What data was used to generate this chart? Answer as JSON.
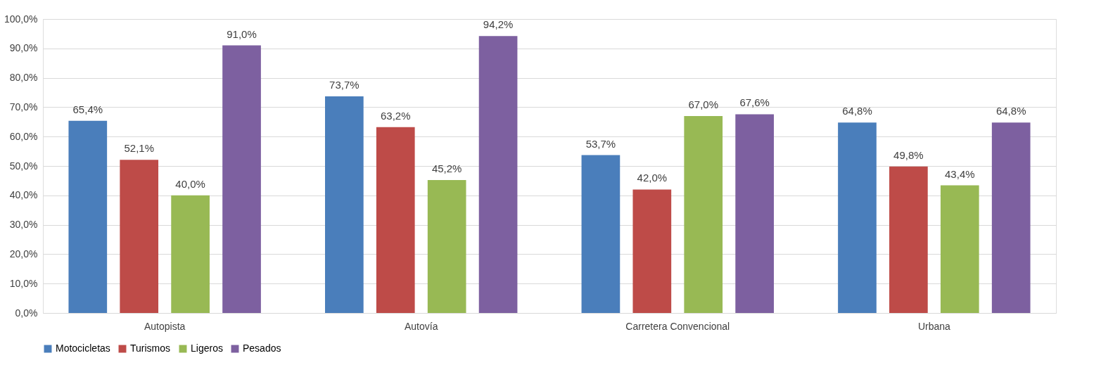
{
  "chart_data": {
    "type": "bar",
    "categories": [
      "Autopista",
      "Autovía",
      "Carretera Convencional",
      "Urbana"
    ],
    "series": [
      {
        "name": "Motocicletas",
        "color": "#4a7ebb",
        "values": [
          65.4,
          73.7,
          53.7,
          64.8
        ],
        "value_labels": [
          "65,4%",
          "73,7%",
          "53,7%",
          "64,8%"
        ]
      },
      {
        "name": "Turismos",
        "color": "#be4b48",
        "values": [
          52.1,
          63.2,
          42.0,
          49.8
        ],
        "value_labels": [
          "52,1%",
          "63,2%",
          "42,0%",
          "49,8%"
        ]
      },
      {
        "name": "Ligeros",
        "color": "#98b954",
        "values": [
          40.0,
          45.2,
          67.0,
          43.4
        ],
        "value_labels": [
          "40,0%",
          "45,2%",
          "67,0%",
          "43,4%"
        ]
      },
      {
        "name": "Pesados",
        "color": "#7d60a0",
        "values": [
          91.0,
          94.2,
          67.6,
          64.8
        ],
        "value_labels": [
          "91,0%",
          "94,2%",
          "67,6%",
          "64,8%"
        ]
      }
    ],
    "ylim": [
      0,
      100
    ],
    "yticks": [
      {
        "value": 0,
        "label": "0,0%"
      },
      {
        "value": 10,
        "label": "10,0%"
      },
      {
        "value": 20,
        "label": "20,0%"
      },
      {
        "value": 30,
        "label": "30,0%"
      },
      {
        "value": 40,
        "label": "40,0%"
      },
      {
        "value": 50,
        "label": "50,0%"
      },
      {
        "value": 60,
        "label": "60,0%"
      },
      {
        "value": 70,
        "label": "70,0%"
      },
      {
        "value": 80,
        "label": "80,0%"
      },
      {
        "value": 90,
        "label": "90,0%"
      },
      {
        "value": 100,
        "label": "100,0%"
      }
    ],
    "grid": "y",
    "legend": "bottom"
  }
}
